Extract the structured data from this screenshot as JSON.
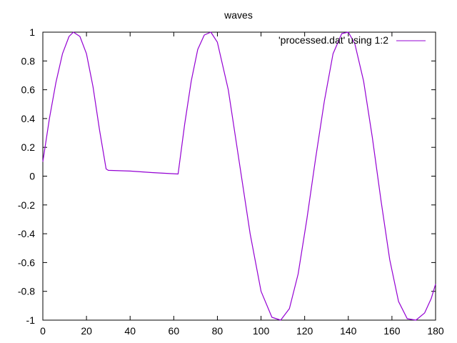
{
  "chart_data": {
    "type": "line",
    "title": "waves",
    "xlabel": "",
    "ylabel": "",
    "xlim": [
      0,
      180
    ],
    "ylim": [
      -1,
      1
    ],
    "x_ticks": [
      "0",
      "20",
      "40",
      "60",
      "80",
      "100",
      "120",
      "140",
      "160",
      "180"
    ],
    "y_ticks": [
      "1",
      "0.8",
      "0.6",
      "0.4",
      "0.2",
      "0",
      "-0.2",
      "-0.4",
      "-0.6",
      "-0.8",
      "-1"
    ],
    "grid": false,
    "legend_position": "top-right",
    "series": [
      {
        "name": "'processed.dat' using 1:2",
        "color": "#9400d3",
        "x": [
          0,
          3,
          6,
          9,
          12,
          14,
          17,
          20,
          23,
          26,
          29,
          30,
          40,
          50,
          62,
          65,
          68,
          71,
          74,
          77,
          80,
          85,
          90,
          95,
          100,
          105,
          109,
          113,
          117,
          121,
          125,
          129,
          133,
          137,
          140,
          143,
          147,
          151,
          155,
          159,
          163,
          167,
          171,
          175,
          178,
          180
        ],
        "y": [
          0.1,
          0.4,
          0.65,
          0.85,
          0.97,
          1.0,
          0.97,
          0.85,
          0.62,
          0.32,
          0.05,
          0.04,
          0.035,
          0.025,
          0.015,
          0.36,
          0.66,
          0.88,
          0.98,
          1.0,
          0.93,
          0.6,
          0.1,
          -0.4,
          -0.8,
          -0.98,
          -1.0,
          -0.92,
          -0.68,
          -0.3,
          0.12,
          0.52,
          0.85,
          0.99,
          1.0,
          0.92,
          0.66,
          0.27,
          -0.17,
          -0.58,
          -0.87,
          -0.99,
          -1.0,
          -0.95,
          -0.85,
          -0.75
        ]
      }
    ]
  }
}
